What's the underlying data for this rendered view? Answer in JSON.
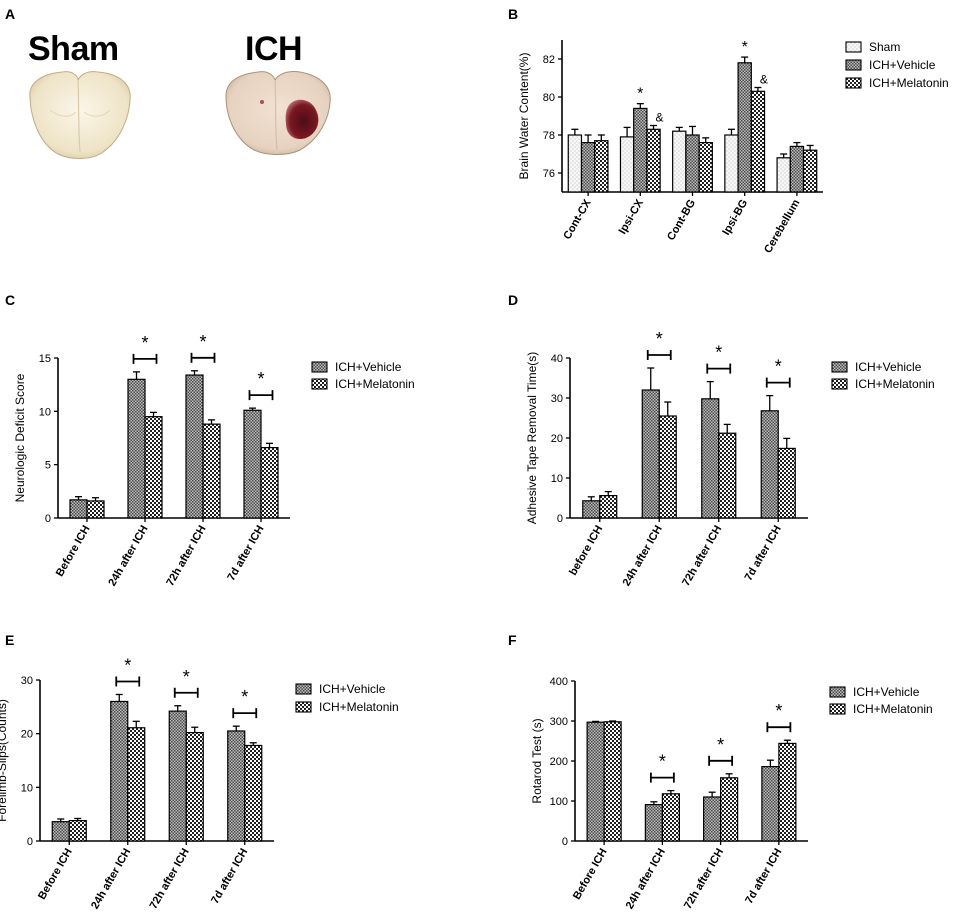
{
  "figure": {
    "panels": [
      "A",
      "B",
      "C",
      "D",
      "E",
      "F"
    ]
  },
  "brain_panel": {
    "sham_label": "Sham",
    "ich_label": "ICH"
  },
  "colors": {
    "bar_stroke": "#000000",
    "sham_fill": "#f2f2f2",
    "vehicle_fill": "#6e6e6e",
    "melatonin_fill": "#3a3a3a",
    "brain_tissue": "#efe7d2",
    "hematoma": "#7a1822"
  },
  "chart_data": [
    {
      "id": "B",
      "type": "bar",
      "ylabel": "Brain Water Content(%)",
      "xlabel": "",
      "ylim": [
        75,
        83
      ],
      "yticks": [
        76,
        78,
        80,
        82
      ],
      "categories": [
        "Cont-CX",
        "Ipsi-CX",
        "Cont-BG",
        "Ipsi-BG",
        "Cerebellum"
      ],
      "series": [
        {
          "name": "Sham",
          "pattern": "sham",
          "values": [
            78.0,
            77.9,
            78.2,
            78.0,
            76.8
          ],
          "errors": [
            0.3,
            0.5,
            0.2,
            0.3,
            0.2
          ]
        },
        {
          "name": "ICH+Vehicle",
          "pattern": "vehicle",
          "values": [
            77.6,
            79.4,
            78.0,
            81.8,
            77.4
          ],
          "errors": [
            0.4,
            0.25,
            0.45,
            0.3,
            0.2
          ]
        },
        {
          "name": "ICH+Melatonin",
          "pattern": "melatonin",
          "values": [
            77.7,
            78.3,
            77.6,
            80.3,
            77.2
          ],
          "errors": [
            0.3,
            0.2,
            0.25,
            0.2,
            0.25
          ]
        }
      ],
      "legend_position": "top-right",
      "annotations": [
        {
          "category": 1,
          "series": 1,
          "text": "*"
        },
        {
          "category": 1,
          "series": 2,
          "text": "&"
        },
        {
          "category": 3,
          "series": 1,
          "text": "*"
        },
        {
          "category": 3,
          "series": 2,
          "text": "&"
        }
      ]
    },
    {
      "id": "C",
      "type": "bar",
      "ylabel": "Neurologic Deficit Score",
      "xlabel": "",
      "ylim": [
        0,
        15
      ],
      "yticks": [
        0,
        5,
        10,
        15
      ],
      "categories": [
        "Before ICH",
        "24h after ICH",
        "72h after ICH",
        "7d after ICH"
      ],
      "series": [
        {
          "name": "ICH+Vehicle",
          "pattern": "vehicle",
          "values": [
            1.7,
            13.0,
            13.4,
            10.1
          ],
          "errors": [
            0.3,
            0.7,
            0.4,
            0.2
          ]
        },
        {
          "name": "ICH+Melatonin",
          "pattern": "melatonin",
          "values": [
            1.6,
            9.5,
            8.8,
            6.6
          ],
          "errors": [
            0.3,
            0.4,
            0.4,
            0.4
          ]
        }
      ],
      "legend_position": "top-right",
      "significance": [
        {
          "category": 1,
          "text": "*"
        },
        {
          "category": 2,
          "text": "*"
        },
        {
          "category": 3,
          "text": "*"
        }
      ]
    },
    {
      "id": "D",
      "type": "bar",
      "ylabel": "Adhesive Tape Removal Time(s)",
      "xlabel": "",
      "ylim": [
        0,
        40
      ],
      "yticks": [
        0,
        10,
        20,
        30,
        40
      ],
      "categories": [
        "before ICH",
        "24h after ICH",
        "72h after ICH",
        "7d after ICH"
      ],
      "series": [
        {
          "name": "ICH+Vehicle",
          "pattern": "vehicle",
          "values": [
            4.3,
            32.0,
            29.8,
            26.8
          ],
          "errors": [
            1.0,
            5.5,
            4.3,
            3.8
          ]
        },
        {
          "name": "ICH+Melatonin",
          "pattern": "melatonin",
          "values": [
            5.6,
            25.5,
            21.2,
            17.4
          ],
          "errors": [
            1.0,
            3.5,
            2.2,
            2.5
          ]
        }
      ],
      "legend_position": "top-right",
      "significance": [
        {
          "category": 1,
          "text": "*"
        },
        {
          "category": 2,
          "text": "*"
        },
        {
          "category": 3,
          "text": "*"
        }
      ]
    },
    {
      "id": "E",
      "type": "bar",
      "ylabel": "Forelimb-Slips(Counts)",
      "xlabel": "",
      "ylim": [
        0,
        30
      ],
      "yticks": [
        0,
        10,
        20,
        30
      ],
      "categories": [
        "Before ICH",
        "24h after ICH",
        "72h after ICH",
        "7d  after ICH"
      ],
      "series": [
        {
          "name": "ICH+Vehicle",
          "pattern": "vehicle",
          "values": [
            3.6,
            26.0,
            24.2,
            20.5
          ],
          "errors": [
            0.5,
            1.3,
            1.0,
            0.9
          ]
        },
        {
          "name": "ICH+Melatonin",
          "pattern": "melatonin",
          "values": [
            3.8,
            21.1,
            20.2,
            17.8
          ],
          "errors": [
            0.4,
            1.2,
            1.0,
            0.5
          ]
        }
      ],
      "legend_position": "top-right",
      "significance": [
        {
          "category": 1,
          "text": "*"
        },
        {
          "category": 2,
          "text": "*"
        },
        {
          "category": 3,
          "text": "*"
        }
      ]
    },
    {
      "id": "F",
      "type": "bar",
      "ylabel": "Rotarod Test (s)",
      "xlabel": "",
      "ylim": [
        0,
        400
      ],
      "yticks": [
        0,
        100,
        200,
        300,
        400
      ],
      "categories": [
        "Before ICH",
        "24h after ICH",
        "72h after ICH",
        "7d after ICH"
      ],
      "series": [
        {
          "name": "ICH+Vehicle",
          "pattern": "vehicle",
          "values": [
            297,
            91,
            110,
            186
          ],
          "errors": [
            2,
            7,
            12,
            16
          ]
        },
        {
          "name": "ICH+Melatonin",
          "pattern": "melatonin",
          "values": [
            298,
            118,
            158,
            244
          ],
          "errors": [
            2,
            8,
            10,
            8
          ]
        }
      ],
      "legend_position": "top-right",
      "significance": [
        {
          "category": 1,
          "text": "*"
        },
        {
          "category": 2,
          "text": "*"
        },
        {
          "category": 3,
          "text": "*"
        }
      ]
    }
  ]
}
